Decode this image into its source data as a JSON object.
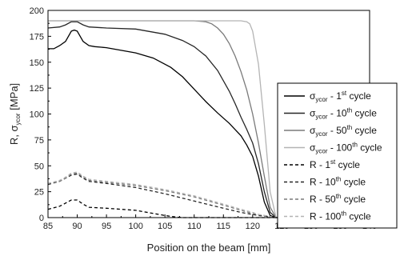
{
  "chart_data": {
    "type": "line",
    "xlabel": "Position on the beam [mm]",
    "ylabel": {
      "main": "R, σ",
      "sub": "ycor",
      "unit": " [MPa]"
    },
    "xlim": [
      85,
      140
    ],
    "ylim": [
      0,
      200
    ],
    "x_ticks": [
      85,
      90,
      95,
      100,
      105,
      110,
      115,
      120,
      125,
      130,
      135,
      140
    ],
    "y_ticks": [
      0,
      25,
      50,
      75,
      100,
      125,
      150,
      175,
      200
    ],
    "legend_position": "right",
    "series": [
      {
        "legend": {
          "main": "σ",
          "sub": "ycor",
          "middle": " - 1",
          "sup": "st",
          "tail": " cycle"
        },
        "color": "#000000",
        "dash": "",
        "x": [
          85,
          86,
          87,
          88,
          89,
          89.5,
          90,
          91,
          92,
          93,
          95,
          100,
          103,
          106,
          108,
          110,
          112,
          114,
          116,
          118,
          119,
          120,
          121,
          122,
          123,
          124,
          125
        ],
        "y": [
          163,
          163,
          166,
          170,
          180,
          181,
          180,
          170,
          166,
          165,
          164,
          159,
          154,
          145,
          136,
          124,
          112,
          101,
          91,
          79,
          70,
          59,
          40,
          15,
          2,
          0,
          0
        ]
      },
      {
        "legend": {
          "main": "σ",
          "sub": "ycor",
          "middle": " - 10",
          "sup": "th",
          "tail": " cycle"
        },
        "color": "#262626",
        "dash": "",
        "x": [
          85,
          87,
          88,
          89,
          90,
          91,
          92,
          95,
          100,
          105,
          108,
          110,
          112,
          114,
          116,
          117,
          118,
          119,
          120,
          121,
          122,
          123,
          124,
          125
        ],
        "y": [
          183,
          184,
          186,
          189,
          189,
          186,
          184,
          183,
          182,
          177,
          171,
          165,
          156,
          142,
          122,
          110,
          97,
          85,
          72,
          52,
          25,
          5,
          0,
          0
        ]
      },
      {
        "legend": {
          "main": "σ",
          "sub": "ycor",
          "middle": " - 50",
          "sup": "th",
          "tail": " cycle"
        },
        "color": "#7a7a7a",
        "dash": "",
        "x": [
          85,
          88,
          89,
          90,
          92,
          95,
          100,
          105,
          110,
          112,
          113,
          114,
          115,
          116,
          117,
          118,
          119,
          120,
          121,
          122,
          123,
          124,
          125
        ],
        "y": [
          190,
          190,
          190,
          190,
          190,
          190,
          190,
          190,
          190,
          189,
          187,
          183,
          177,
          168,
          156,
          141,
          123,
          100,
          72,
          40,
          10,
          0,
          0
        ]
      },
      {
        "legend": {
          "main": "σ",
          "sub": "ycor",
          "middle": " - 100",
          "sup": "th",
          "tail": " cycle"
        },
        "color": "#b4b4b4",
        "dash": "",
        "x": [
          85,
          90,
          100,
          110,
          115,
          118,
          119,
          119.5,
          120,
          121,
          122,
          123,
          124,
          125
        ],
        "y": [
          190,
          190,
          190,
          190,
          190,
          190,
          189,
          187,
          180,
          148,
          90,
          25,
          0,
          0
        ]
      },
      {
        "legend": {
          "main": "R",
          "sub": "",
          "middle": " - 1",
          "sup": "st",
          "tail": " cycle"
        },
        "color": "#000000",
        "dash": "4,3",
        "x": [
          85,
          87,
          88,
          89,
          90,
          91,
          92,
          95,
          100,
          103,
          105,
          107,
          108,
          110,
          115,
          120,
          125
        ],
        "y": [
          8,
          11,
          14,
          17,
          17,
          13,
          10,
          9,
          7,
          4,
          2,
          0.5,
          0,
          0,
          0,
          0,
          0
        ]
      },
      {
        "legend": {
          "main": "R",
          "sub": "",
          "middle": " - 10",
          "sup": "th",
          "tail": " cycle"
        },
        "color": "#262626",
        "dash": "4,3",
        "x": [
          85,
          87,
          88,
          89,
          90,
          91,
          92,
          95,
          100,
          105,
          110,
          115,
          118,
          120,
          121,
          122,
          123,
          124,
          125
        ],
        "y": [
          32,
          35,
          38,
          41,
          42,
          38,
          35,
          33,
          29,
          23,
          16,
          9,
          5,
          3,
          2,
          1.5,
          1,
          0,
          0
        ]
      },
      {
        "legend": {
          "main": "R",
          "sub": "",
          "middle": " - 50",
          "sup": "th",
          "tail": " cycle"
        },
        "color": "#7a7a7a",
        "dash": "4,3",
        "x": [
          85,
          87,
          88,
          89,
          90,
          91,
          92,
          95,
          100,
          105,
          110,
          115,
          118,
          120,
          121,
          122,
          123,
          124,
          125
        ],
        "y": [
          33,
          35,
          38,
          42,
          43,
          39,
          36,
          34,
          31,
          26,
          20,
          12,
          7,
          4,
          3,
          2,
          1,
          0,
          0
        ]
      },
      {
        "legend": {
          "main": "R",
          "sub": "",
          "middle": " - 100",
          "sup": "th",
          "tail": " cycle"
        },
        "color": "#b4b4b4",
        "dash": "4,3",
        "x": [
          85,
          87,
          88,
          89,
          90,
          91,
          92,
          95,
          100,
          105,
          110,
          115,
          118,
          120,
          121,
          122,
          123,
          124,
          125
        ],
        "y": [
          33,
          36,
          39,
          43,
          44,
          40,
          37,
          35,
          32,
          27,
          21,
          13,
          8,
          5,
          3,
          2,
          1,
          0,
          0
        ]
      }
    ]
  }
}
